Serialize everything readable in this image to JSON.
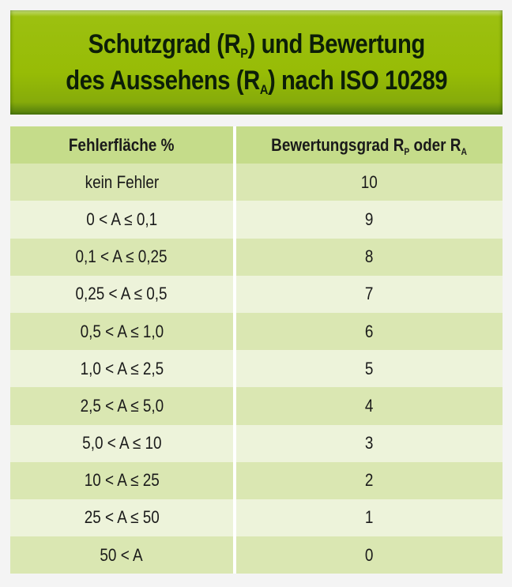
{
  "title": {
    "line1_pre": "Schutzgrad (R",
    "line1_sub": "P",
    "line1_post": ") und Bewertung",
    "line2_pre": "des Aussehens (R",
    "line2_sub": "A",
    "line2_post": ") nach ISO 10289"
  },
  "table": {
    "headers": {
      "col1": "Fehlerfläche %",
      "col2_pre": "Bewertungsgrad R",
      "col2_sub1": "P",
      "col2_mid": " oder R",
      "col2_sub2": "A"
    },
    "rows": [
      {
        "area": "kein Fehler",
        "grade": "10"
      },
      {
        "area": "0 < A ≤ 0,1",
        "grade": "9"
      },
      {
        "area": "0,1 < A ≤ 0,25",
        "grade": "8"
      },
      {
        "area": "0,25 < A ≤ 0,5",
        "grade": "7"
      },
      {
        "area": "0,5 < A ≤ 1,0",
        "grade": "6"
      },
      {
        "area": "1,0 < A ≤ 2,5",
        "grade": "5"
      },
      {
        "area": "2,5 < A ≤ 5,0",
        "grade": "4"
      },
      {
        "area": "5,0 < A ≤ 10",
        "grade": "3"
      },
      {
        "area": "10 < A ≤ 25",
        "grade": "2"
      },
      {
        "area": "25 < A ≤ 50",
        "grade": "1"
      },
      {
        "area": "50 < A",
        "grade": "0"
      }
    ]
  },
  "colors": {
    "banner_green": "#97bc06",
    "header_green": "#c5dc8a",
    "row_dark": "#dae7b2",
    "row_light": "#edf3da"
  }
}
